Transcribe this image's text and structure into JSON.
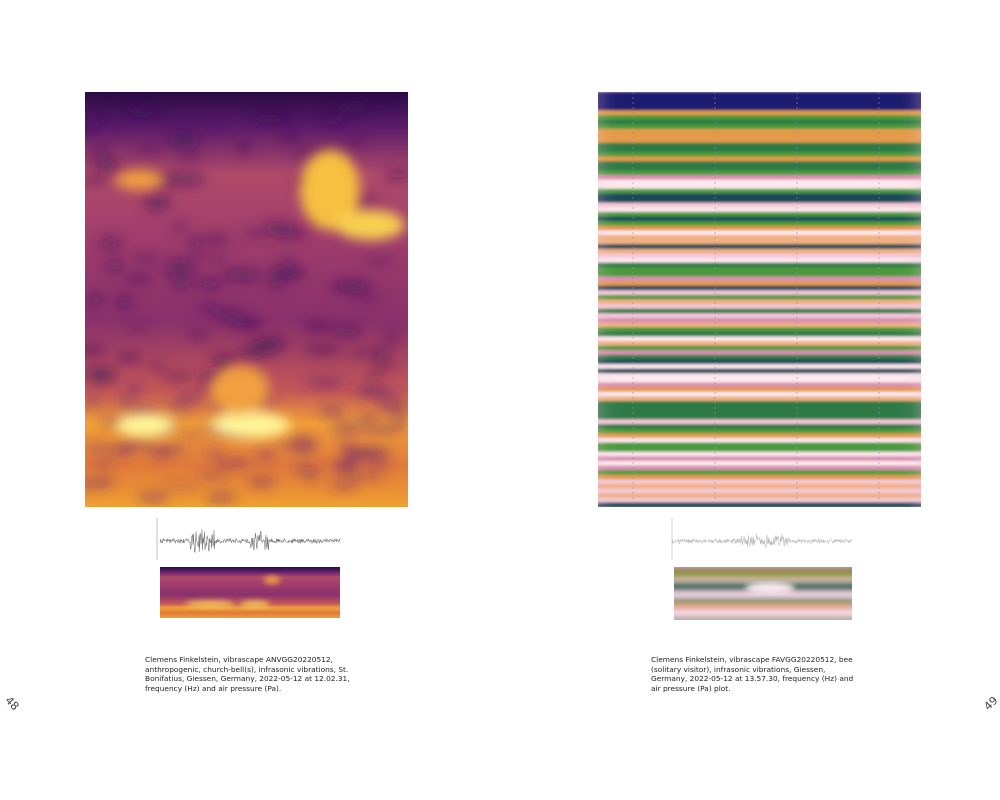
{
  "pages": [
    {
      "number": "48",
      "caption": "Clemens Finkelstein, vibrascape ANVGG20220512, anthropogenic, church-bell(s), infrasonic vibrations, St. Bonifatius, Giessen, Germany, 2022-05-12 at 12.02.31, frequency (Hz) and air pressure (Pa)."
    },
    {
      "number": "49",
      "caption": "Clemens Finkelstein, vibrascape FAVGG20220512, bee (solitary visitor), infrasonic vibrations, Giessen, Germany, 2022-05-12 at 13.57.30, frequency (Hz) and air pressure (Pa) plot."
    }
  ]
}
